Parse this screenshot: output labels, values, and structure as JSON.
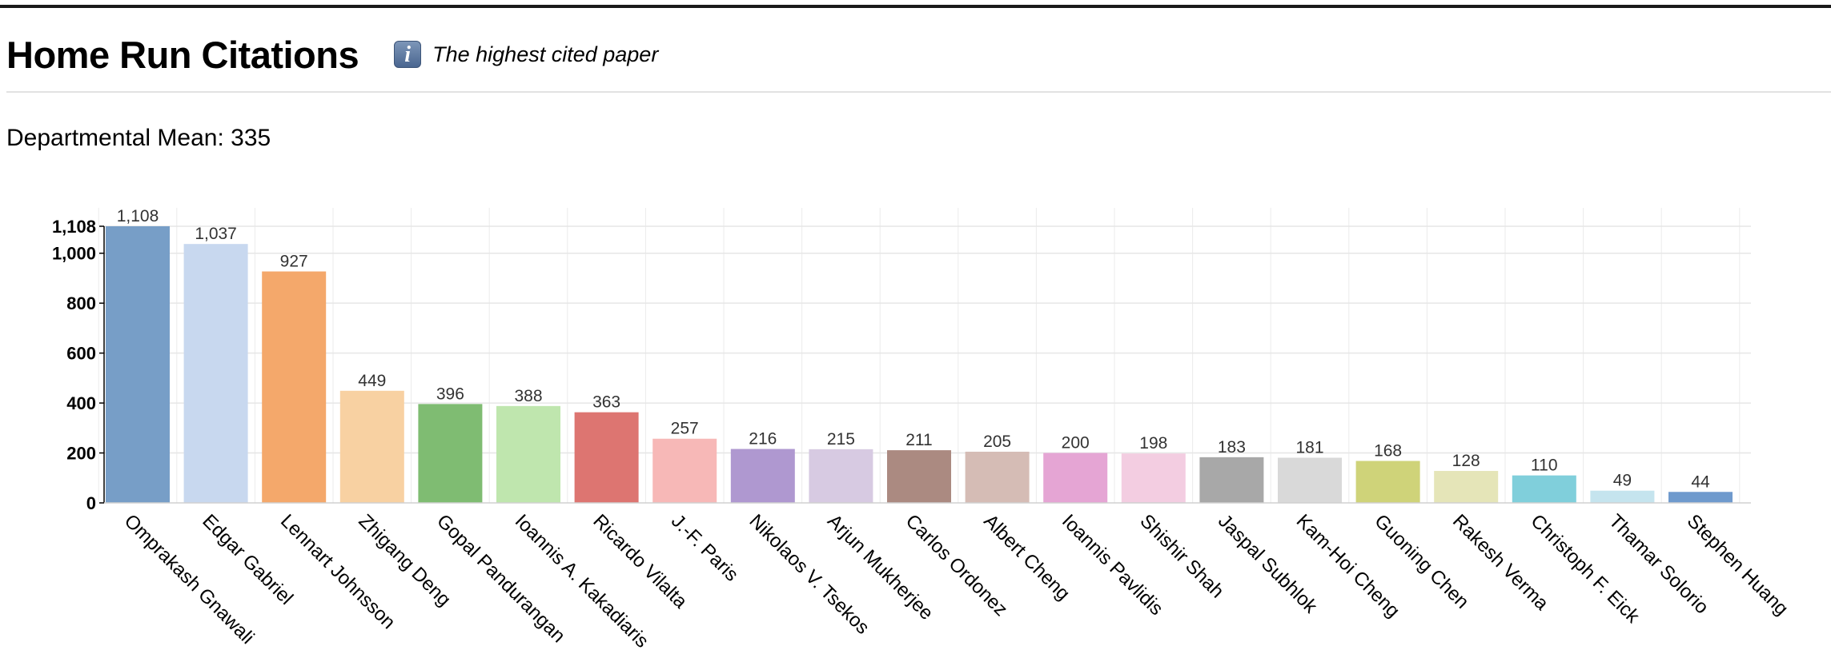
{
  "header": {
    "title": "Home Run Citations",
    "info_icon": "info-icon",
    "subtitle": "The highest cited paper"
  },
  "summary": {
    "mean_text": "Departmental Mean: 335"
  },
  "chart_data": {
    "type": "bar",
    "title": "",
    "xlabel": "",
    "ylabel": "",
    "ylim": [
      0,
      1108
    ],
    "yticks": [
      0,
      200,
      400,
      600,
      800,
      1000,
      1108
    ],
    "ytick_labels": [
      "0",
      "200",
      "400",
      "600",
      "800",
      "1,000",
      "1,108"
    ],
    "grid": true,
    "categories": [
      "Omprakash Gnawali",
      "Edgar Gabriel",
      "Lennart Johnsson",
      "Zhigang Deng",
      "Gopal Pandurangan",
      "Ioannis A. Kakadiaris",
      "Ricardo Vilalta",
      "J.-F. Paris",
      "Nikolaos V. Tsekos",
      "Arjun Mukherjee",
      "Carlos Ordonez",
      "Albert Cheng",
      "Ioannis Pavlidis",
      "Shishir Shah",
      "Jaspal Subhlok",
      "Kam-Hoi Cheng",
      "Guoning Chen",
      "Rakesh Verma",
      "Christoph F. Eick",
      "Thamar Solorio",
      "Stephen Huang"
    ],
    "values": [
      1108,
      1037,
      927,
      449,
      396,
      388,
      363,
      257,
      216,
      215,
      211,
      205,
      200,
      198,
      183,
      181,
      168,
      128,
      110,
      49,
      44
    ],
    "value_labels": [
      "1,108",
      "1,037",
      "927",
      "449",
      "396",
      "388",
      "363",
      "257",
      "216",
      "215",
      "211",
      "205",
      "200",
      "198",
      "183",
      "181",
      "168",
      "128",
      "110",
      "49",
      "44"
    ],
    "colors": [
      "#779ec7",
      "#c8d8ef",
      "#f4a86b",
      "#f8d1a2",
      "#7fbc72",
      "#bfe6ae",
      "#dd7571",
      "#f7b8b7",
      "#af98d0",
      "#d7cae2",
      "#ab8a81",
      "#d5bcb5",
      "#e5a5d4",
      "#f3cde1",
      "#a8a8a8",
      "#d9d9d9",
      "#cfd379",
      "#e5e5b8",
      "#80cfdb",
      "#c5e4ee",
      "#6f9acd"
    ]
  }
}
